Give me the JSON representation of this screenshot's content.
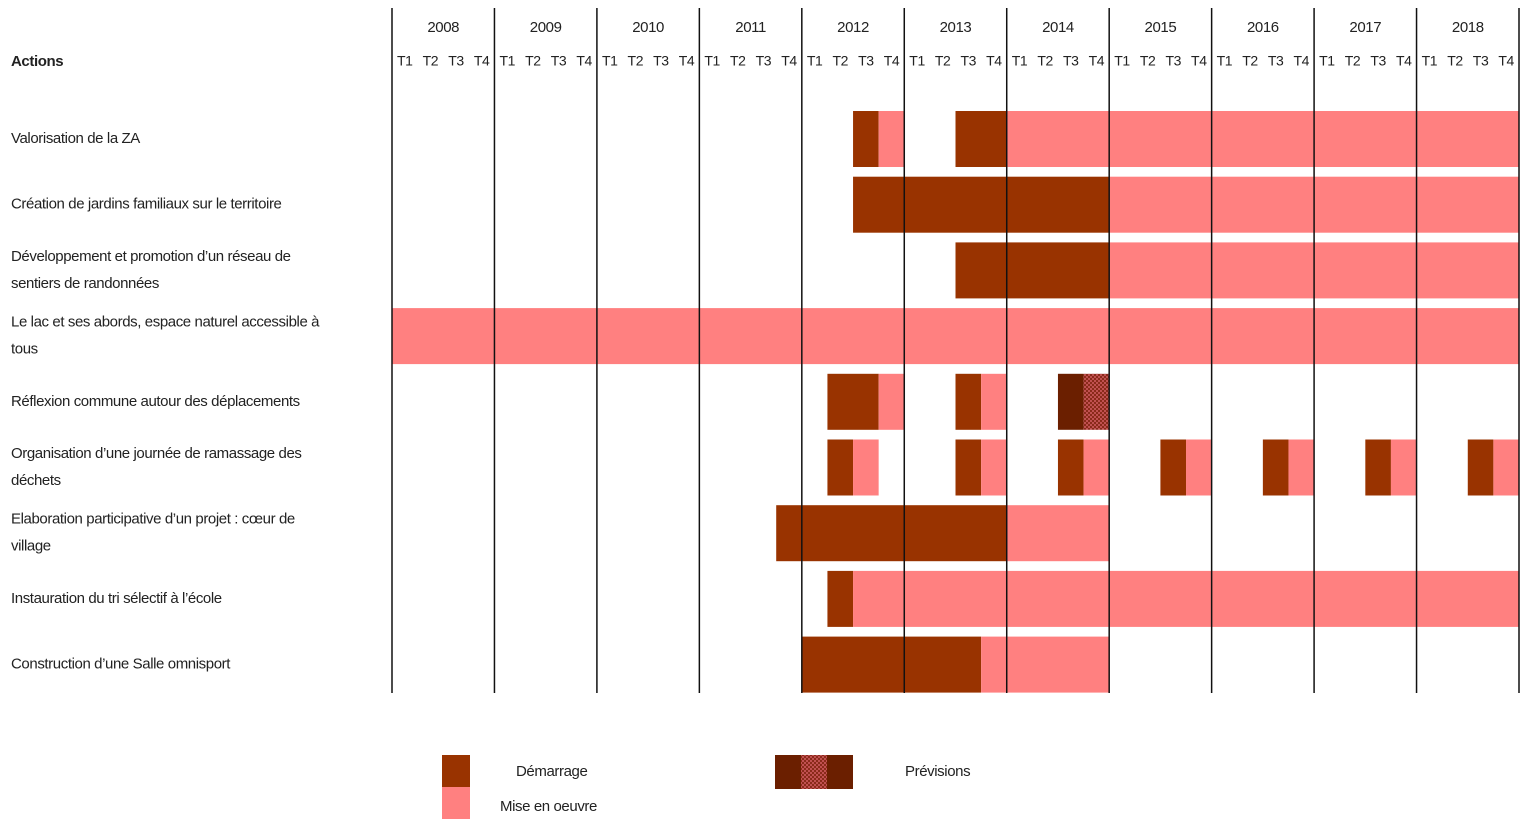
{
  "chart_data": {
    "type": "gantt",
    "row_header": "Actions",
    "years": [
      2008,
      2009,
      2010,
      2011,
      2012,
      2013,
      2014,
      2015,
      2016,
      2017,
      2018
    ],
    "quarters": [
      "T1",
      "T2",
      "T3",
      "T4"
    ],
    "xlim": [
      2008,
      2019
    ],
    "colors": {
      "demarrage": "#993300",
      "mise": "#ff8080",
      "prevision_demarrage": "#6b1f00",
      "prevision_mise": "hatch"
    },
    "tasks": [
      {
        "label": [
          "Valorisation de la ZA"
        ],
        "segments": [
          {
            "kind": "demarrage",
            "start": 2012.5,
            "end": 2012.75
          },
          {
            "kind": "mise",
            "start": 2012.75,
            "end": 2013
          },
          {
            "kind": "demarrage",
            "start": 2013.5,
            "end": 2014
          },
          {
            "kind": "mise",
            "start": 2014,
            "end": 2019
          }
        ]
      },
      {
        "label": [
          "Création de jardins familiaux sur le territoire"
        ],
        "segments": [
          {
            "kind": "demarrage",
            "start": 2012.5,
            "end": 2015
          },
          {
            "kind": "mise",
            "start": 2015,
            "end": 2019
          }
        ]
      },
      {
        "label": [
          "Développement et promotion d’un réseau de",
          "sentiers de randonnées"
        ],
        "segments": [
          {
            "kind": "demarrage",
            "start": 2013.5,
            "end": 2015
          },
          {
            "kind": "mise",
            "start": 2015,
            "end": 2019
          }
        ]
      },
      {
        "label": [
          "Le lac et ses abords, espace naturel accessible à",
          "tous"
        ],
        "segments": [
          {
            "kind": "mise",
            "start": 2008,
            "end": 2019
          }
        ]
      },
      {
        "label": [
          "Réflexion commune autour des déplacements"
        ],
        "segments": [
          {
            "kind": "demarrage",
            "start": 2012.25,
            "end": 2012.75
          },
          {
            "kind": "mise",
            "start": 2012.75,
            "end": 2013
          },
          {
            "kind": "demarrage",
            "start": 2013.5,
            "end": 2013.75
          },
          {
            "kind": "mise",
            "start": 2013.75,
            "end": 2014
          },
          {
            "kind": "prevision_demarrage",
            "start": 2014.5,
            "end": 2014.75
          },
          {
            "kind": "prevision_mise",
            "start": 2014.75,
            "end": 2015
          }
        ]
      },
      {
        "label": [
          "Organisation d’une journée de ramassage des",
          "déchets"
        ],
        "segments": [
          {
            "kind": "demarrage",
            "start": 2012.25,
            "end": 2012.5
          },
          {
            "kind": "mise",
            "start": 2012.5,
            "end": 2012.75
          },
          {
            "kind": "demarrage",
            "start": 2013.5,
            "end": 2013.75
          },
          {
            "kind": "mise",
            "start": 2013.75,
            "end": 2014
          },
          {
            "kind": "demarrage",
            "start": 2014.5,
            "end": 2014.75
          },
          {
            "kind": "mise",
            "start": 2014.75,
            "end": 2015
          },
          {
            "kind": "demarrage",
            "start": 2015.5,
            "end": 2015.75
          },
          {
            "kind": "mise",
            "start": 2015.75,
            "end": 2016
          },
          {
            "kind": "demarrage",
            "start": 2016.5,
            "end": 2016.75
          },
          {
            "kind": "mise",
            "start": 2016.75,
            "end": 2017
          },
          {
            "kind": "demarrage",
            "start": 2017.5,
            "end": 2017.75
          },
          {
            "kind": "mise",
            "start": 2017.75,
            "end": 2018
          },
          {
            "kind": "demarrage",
            "start": 2018.5,
            "end": 2018.75
          },
          {
            "kind": "mise",
            "start": 2018.75,
            "end": 2019
          }
        ]
      },
      {
        "label": [
          "Elaboration participative d’un projet : cœur de",
          "village"
        ],
        "segments": [
          {
            "kind": "demarrage",
            "start": 2011.75,
            "end": 2014
          },
          {
            "kind": "mise",
            "start": 2014,
            "end": 2015
          }
        ]
      },
      {
        "label": [
          "Instauration du tri sélectif à l’école"
        ],
        "segments": [
          {
            "kind": "demarrage",
            "start": 2012.25,
            "end": 2012.5
          },
          {
            "kind": "mise",
            "start": 2012.5,
            "end": 2019
          }
        ]
      },
      {
        "label": [
          "Construction d’une Salle omnisport"
        ],
        "segments": [
          {
            "kind": "demarrage",
            "start": 2012,
            "end": 2013.75
          },
          {
            "kind": "mise",
            "start": 2013.75,
            "end": 2015
          }
        ]
      }
    ],
    "legend": [
      {
        "name": "Démarrage",
        "kinds": [
          "demarrage"
        ]
      },
      {
        "name": "Mise en oeuvre",
        "kinds": [
          "mise"
        ]
      },
      {
        "name": "Prévisions",
        "kinds": [
          "prevision_demarrage",
          "prevision_mise",
          "prevision_demarrage"
        ]
      }
    ]
  }
}
